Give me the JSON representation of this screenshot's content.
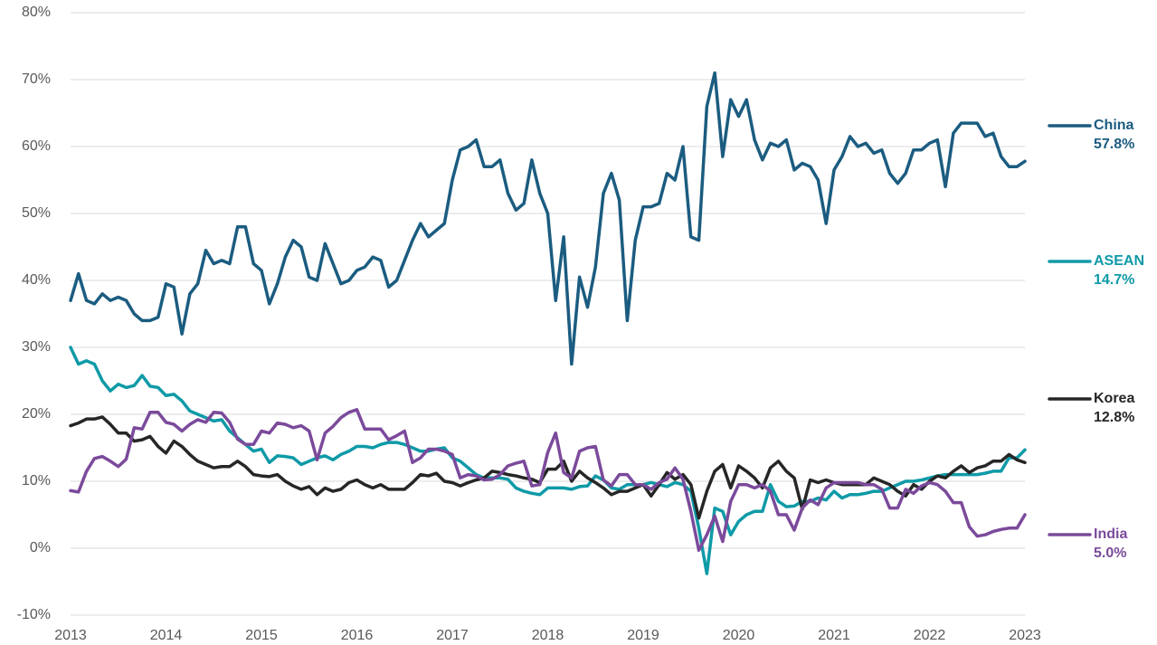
{
  "chart_data": {
    "type": "line",
    "x": [
      2013,
      2013.083,
      2013.167,
      2013.25,
      2013.333,
      2013.417,
      2013.5,
      2013.583,
      2013.667,
      2013.75,
      2013.833,
      2013.917,
      2014,
      2014.083,
      2014.167,
      2014.25,
      2014.333,
      2014.417,
      2014.5,
      2014.583,
      2014.667,
      2014.75,
      2014.833,
      2014.917,
      2015,
      2015.083,
      2015.167,
      2015.25,
      2015.333,
      2015.417,
      2015.5,
      2015.583,
      2015.667,
      2015.75,
      2015.833,
      2015.917,
      2016,
      2016.083,
      2016.167,
      2016.25,
      2016.333,
      2016.417,
      2016.5,
      2016.583,
      2016.667,
      2016.75,
      2016.833,
      2016.917,
      2017,
      2017.083,
      2017.167,
      2017.25,
      2017.333,
      2017.417,
      2017.5,
      2017.583,
      2017.667,
      2017.75,
      2017.833,
      2017.917,
      2018,
      2018.083,
      2018.167,
      2018.25,
      2018.333,
      2018.417,
      2018.5,
      2018.583,
      2018.667,
      2018.75,
      2018.833,
      2018.917,
      2019,
      2019.083,
      2019.167,
      2019.25,
      2019.333,
      2019.417,
      2019.5,
      2019.583,
      2019.667,
      2019.75,
      2019.833,
      2019.917,
      2020,
      2020.083,
      2020.167,
      2020.25,
      2020.333,
      2020.417,
      2020.5,
      2020.583,
      2020.667,
      2020.75,
      2020.833,
      2020.917,
      2021,
      2021.083,
      2021.167,
      2021.25,
      2021.333,
      2021.417,
      2021.5,
      2021.583,
      2021.667,
      2021.75,
      2021.833,
      2021.917,
      2022,
      2022.083,
      2022.167,
      2022.25,
      2022.333,
      2022.417,
      2022.5,
      2022.583,
      2022.667,
      2022.75,
      2022.833,
      2022.917,
      2023
    ],
    "series": [
      {
        "name": "China",
        "color": "#1b5c80",
        "end_label": "57.8%",
        "values": [
          37,
          41,
          37,
          36.5,
          38,
          37,
          37.5,
          37,
          35,
          34,
          34,
          34.5,
          39.5,
          39,
          32,
          38,
          39.5,
          44.5,
          42.5,
          43,
          42.5,
          48,
          48,
          42.5,
          41.5,
          36.5,
          39.5,
          43.5,
          46,
          45,
          40.5,
          40,
          45.5,
          42.5,
          39.5,
          40,
          41.5,
          42,
          43.5,
          43,
          39,
          40,
          43,
          46,
          48.5,
          46.5,
          47.5,
          48.5,
          55,
          59.5,
          60,
          61,
          57,
          57,
          58,
          53,
          50.5,
          51.5,
          58,
          53,
          50,
          37,
          46.5,
          27.5,
          40.5,
          36,
          42,
          53,
          56,
          52,
          34,
          46,
          51,
          51,
          51.5,
          56,
          55,
          60,
          46.5,
          46,
          66,
          71,
          58.5,
          67,
          64.5,
          67,
          61,
          58,
          60.5,
          60,
          61,
          56.5,
          57.5,
          57,
          55,
          48.5,
          56.5,
          58.5,
          61.5,
          60,
          60.5,
          59,
          59.5,
          56,
          54.5,
          56,
          59.5,
          59.5,
          60.5,
          61,
          54,
          62,
          63.5,
          63.5,
          63.5,
          61.5,
          62,
          58.5,
          57,
          57,
          57.8
        ]
      },
      {
        "name": "ASEAN",
        "color": "#0e9aa7",
        "end_label": "14.7%",
        "values": [
          30,
          27.5,
          28,
          27.5,
          25,
          23.5,
          24.5,
          24,
          24.3,
          25.8,
          24.2,
          24,
          22.8,
          23,
          22,
          20.5,
          20,
          19.5,
          19,
          19.2,
          17.5,
          16.5,
          15.5,
          14.5,
          14.8,
          12.8,
          13.8,
          13.7,
          13.5,
          12.5,
          13,
          13.5,
          13.8,
          13.2,
          14,
          14.5,
          15.2,
          15.2,
          15,
          15.5,
          15.8,
          15.8,
          15.5,
          15,
          14.5,
          14.5,
          14.8,
          15,
          13.5,
          13,
          12,
          11,
          10.5,
          10.5,
          10.5,
          10.3,
          9,
          8.5,
          8.2,
          8,
          9,
          9,
          9,
          8.8,
          9.2,
          9.3,
          10.8,
          10.2,
          9,
          8.8,
          9.5,
          9.5,
          9.5,
          9.8,
          9.5,
          9.2,
          9.8,
          9.5,
          8.5,
          3,
          -3.8,
          6,
          5.5,
          2,
          4,
          5,
          5.5,
          5.5,
          9.5,
          7,
          6.2,
          6.3,
          7,
          7,
          7.5,
          7.2,
          8.5,
          7.5,
          8,
          8,
          8.2,
          8.5,
          8.5,
          9,
          9.5,
          10,
          10,
          10.2,
          10.5,
          10.8,
          11,
          11,
          11,
          11,
          11,
          11.2,
          11.5,
          11.5,
          13.5,
          13.5,
          14.7
        ]
      },
      {
        "name": "Korea",
        "color": "#262626",
        "end_label": "12.8%",
        "values": [
          18.3,
          18.7,
          19.3,
          19.3,
          19.6,
          18.5,
          17.2,
          17.2,
          16,
          16.2,
          16.7,
          15.2,
          14.2,
          16,
          15.2,
          14,
          13,
          12.5,
          12,
          12.2,
          12.2,
          13,
          12.2,
          11,
          10.8,
          10.7,
          11,
          10,
          9.3,
          8.8,
          9.2,
          8,
          9,
          8.5,
          8.8,
          9.8,
          10.2,
          9.5,
          9,
          9.5,
          8.8,
          8.8,
          8.8,
          9.8,
          11,
          10.8,
          11.2,
          10,
          9.8,
          9.3,
          9.8,
          10.2,
          10.5,
          11.5,
          11.3,
          11,
          10.8,
          10.5,
          10.3,
          9.8,
          11.8,
          11.8,
          13,
          10,
          11.5,
          10.5,
          9.8,
          9,
          8,
          8.5,
          8.5,
          9,
          9.5,
          7.8,
          9.5,
          11.3,
          10.3,
          11,
          9.5,
          4.5,
          8.5,
          11.5,
          12.5,
          9,
          12.3,
          11.5,
          10.5,
          9,
          12,
          13,
          11.5,
          10.5,
          5.8,
          10.2,
          9.8,
          10.2,
          9.8,
          9.5,
          9.5,
          9.5,
          9.5,
          10.5,
          10,
          9.5,
          8.5,
          7.8,
          9.5,
          8.8,
          10,
          10.8,
          10.5,
          11.5,
          12.3,
          11.3,
          12,
          12.3,
          13,
          13,
          14,
          13.2,
          12.8
        ]
      },
      {
        "name": "India",
        "color": "#7b4a9b",
        "end_label": "5.0%",
        "values": [
          8.6,
          8.4,
          11.5,
          13.4,
          13.7,
          13,
          12.2,
          13.3,
          18,
          17.8,
          20.3,
          20.3,
          18.8,
          18.5,
          17.5,
          18.5,
          19.2,
          18.8,
          20.3,
          20.2,
          18.8,
          16.3,
          15.5,
          15.5,
          17.5,
          17.2,
          18.7,
          18.5,
          18,
          18.3,
          17.5,
          13.2,
          17.2,
          18.2,
          19.5,
          20.3,
          20.7,
          17.8,
          17.8,
          17.8,
          16.2,
          16.8,
          17.5,
          12.8,
          13.5,
          14.8,
          14.8,
          14.5,
          14,
          10.5,
          11,
          10.8,
          10.2,
          10.3,
          11,
          12.3,
          12.7,
          13,
          9.3,
          9.5,
          14.3,
          17.2,
          11.3,
          10.5,
          14.5,
          15,
          15.2,
          10.2,
          9.3,
          11,
          11,
          9.5,
          9.5,
          8.8,
          9.8,
          10.3,
          12,
          10.3,
          5.5,
          -0.3,
          2,
          4.8,
          1,
          7,
          9.5,
          9.5,
          9,
          9.5,
          8.5,
          5,
          5,
          2.7,
          6,
          7.2,
          6.5,
          9,
          9.8,
          9.8,
          9.8,
          9.8,
          9.5,
          9.5,
          8.8,
          6,
          6,
          8.8,
          8.2,
          9.3,
          9.8,
          9.5,
          8.5,
          6.8,
          6.8,
          3.2,
          1.8,
          2,
          2.5,
          2.8,
          3,
          3,
          5.0
        ]
      }
    ],
    "xlim": [
      2013,
      2023
    ],
    "xticks": [
      2013,
      2014,
      2015,
      2016,
      2017,
      2018,
      2019,
      2020,
      2021,
      2022,
      2023
    ],
    "ylim": [
      -10,
      80
    ],
    "yticks": [
      {
        "value": -10,
        "label": "-10%"
      },
      {
        "value": 0,
        "label": "0%"
      },
      {
        "value": 10,
        "label": "10%"
      },
      {
        "value": 20,
        "label": "20%"
      },
      {
        "value": 30,
        "label": "30%"
      },
      {
        "value": 40,
        "label": "40%"
      },
      {
        "value": 50,
        "label": "50%"
      },
      {
        "value": 60,
        "label": "60%"
      },
      {
        "value": 70,
        "label": "70%"
      },
      {
        "value": 80,
        "label": "80%"
      }
    ],
    "grid": true,
    "legend": "right"
  }
}
